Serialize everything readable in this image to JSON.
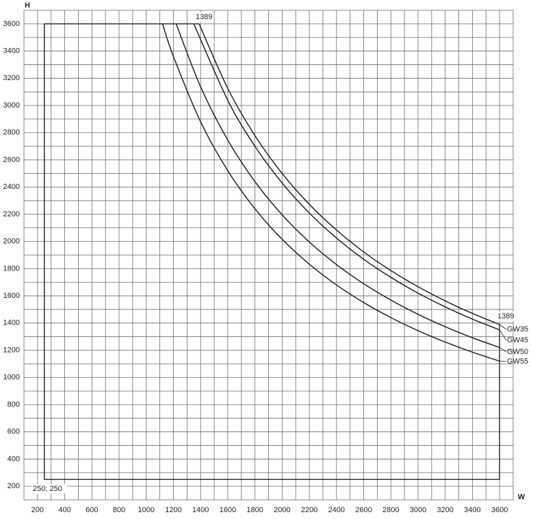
{
  "chart_data": {
    "type": "line",
    "x_label": "W",
    "y_label": "H",
    "xlim": [
      100,
      3700
    ],
    "ylim": [
      100,
      3700
    ],
    "xticks": [
      200,
      400,
      600,
      800,
      1000,
      1200,
      1400,
      1600,
      1800,
      2000,
      2200,
      2400,
      2600,
      2800,
      3000,
      3200,
      3400,
      3600
    ],
    "yticks": [
      200,
      400,
      600,
      800,
      1000,
      1200,
      1400,
      1600,
      1800,
      2000,
      2200,
      2400,
      2600,
      2800,
      3000,
      3200,
      3400,
      3600
    ],
    "minor_xticks": [
      300,
      500,
      700,
      900,
      1100,
      1300,
      1500,
      1700,
      1900,
      2100,
      2300,
      2500,
      2700,
      2900,
      3100,
      3300,
      3500
    ],
    "minor_yticks": [
      300,
      500,
      700,
      900,
      1100,
      1300,
      1500,
      1700,
      1900,
      2100,
      2300,
      2500,
      2700,
      2900,
      3100,
      3300,
      3500
    ],
    "grid": true,
    "boundary": {
      "x": [
        1389,
        250,
        250,
        3600,
        3600
      ],
      "values": [
        3600,
        3600,
        250,
        250,
        1389
      ],
      "color": "#222222"
    },
    "annotations": [
      "1389",
      "1389",
      "250; 250"
    ],
    "series": [
      {
        "name": "GW35",
        "color": "#222222",
        "x": [
          1389,
          1600,
          1800,
          2000,
          2200,
          2400,
          2600,
          2800,
          3000,
          3200,
          3400,
          3600
        ],
        "values": [
          3600,
          3125,
          2778,
          2500,
          2273,
          2084,
          1923,
          1786,
          1667,
          1563,
          1471,
          1389
        ]
      },
      {
        "name": "GW45",
        "color": "#222222",
        "x": [
          1350,
          1600,
          1800,
          2000,
          2200,
          2400,
          2600,
          2800,
          3000,
          3200,
          3400,
          3600
        ],
        "values": [
          3600,
          3038,
          2700,
          2430,
          2209,
          2025,
          1869,
          1736,
          1620,
          1519,
          1429,
          1350
        ]
      },
      {
        "name": "GW50",
        "color": "#222222",
        "x": [
          1220,
          1400,
          1600,
          1800,
          2000,
          2200,
          2400,
          2600,
          2800,
          3000,
          3200,
          3400,
          3600
        ],
        "values": [
          3600,
          3137,
          2745,
          2440,
          2196,
          1996,
          1830,
          1689,
          1569,
          1464,
          1373,
          1292,
          1220
        ]
      },
      {
        "name": "GW55",
        "color": "#222222",
        "x": [
          1120,
          1200,
          1400,
          1600,
          1800,
          2000,
          2200,
          2400,
          2600,
          2800,
          3000,
          3200,
          3400,
          3600
        ],
        "values": [
          3600,
          3360,
          2880,
          2520,
          2240,
          2016,
          1833,
          1680,
          1551,
          1440,
          1344,
          1260,
          1186,
          1120
        ]
      }
    ]
  }
}
